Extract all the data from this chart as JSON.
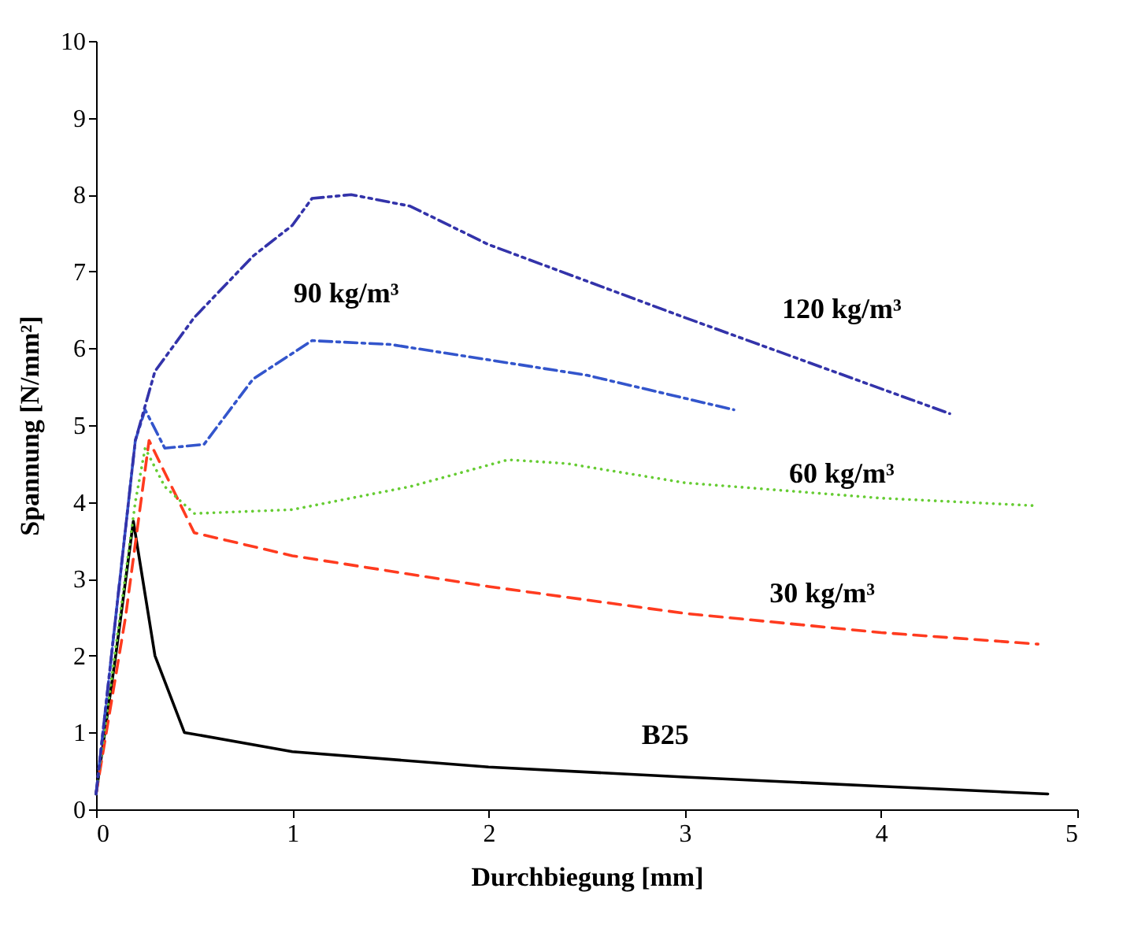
{
  "chart_data": {
    "type": "line",
    "xlabel": "Durchbiegung [mm]",
    "ylabel": "Spannung [N/mm²]",
    "xlim": [
      0,
      5
    ],
    "ylim": [
      0,
      10
    ],
    "xticks": [
      0,
      1,
      2,
      3,
      4,
      5
    ],
    "yticks": [
      0,
      1,
      2,
      3,
      4,
      5,
      6,
      7,
      8,
      9,
      10
    ],
    "grid": false,
    "series": [
      {
        "name": "B25",
        "color": "#000000",
        "line_style": "solid",
        "x": [
          0,
          0.1,
          0.19,
          0.3,
          0.45,
          1,
          2,
          3,
          4,
          4.85
        ],
        "values": [
          0.2,
          2,
          3.75,
          2,
          1.0,
          0.75,
          0.55,
          0.42,
          0.3,
          0.2
        ]
      },
      {
        "name": "30 kg/m³",
        "color": "#ff3b1f",
        "line_style": "dashed",
        "x": [
          0,
          0.15,
          0.27,
          0.5,
          1,
          2,
          3,
          4,
          4.8
        ],
        "values": [
          0.2,
          2.5,
          4.8,
          3.6,
          3.3,
          2.9,
          2.55,
          2.3,
          2.15
        ]
      },
      {
        "name": "60 kg/m³",
        "color": "#66cc33",
        "line_style": "dotted",
        "x": [
          0,
          0.2,
          0.25,
          0.35,
          0.5,
          1,
          1.6,
          2.1,
          2.4,
          3,
          4,
          4.8
        ],
        "values": [
          0.2,
          4,
          4.7,
          4.2,
          3.85,
          3.9,
          4.2,
          4.55,
          4.5,
          4.25,
          4.05,
          3.95
        ]
      },
      {
        "name": "90 kg/m³",
        "color": "#3355cc",
        "line_style": "dashdot",
        "x": [
          0,
          0.2,
          0.25,
          0.35,
          0.55,
          0.8,
          1.1,
          1.5,
          2,
          2.5,
          3.25
        ],
        "values": [
          0.2,
          4.8,
          5.2,
          4.7,
          4.75,
          5.6,
          6.1,
          6.05,
          5.85,
          5.65,
          5.2
        ]
      },
      {
        "name": "120 kg/m³",
        "color": "#3333aa",
        "line_style": "dashdotdot",
        "x": [
          0,
          0.2,
          0.3,
          0.5,
          0.8,
          1,
          1.1,
          1.3,
          1.6,
          2,
          3,
          4.35
        ],
        "values": [
          0.2,
          4.8,
          5.7,
          6.4,
          7.2,
          7.6,
          7.95,
          8.0,
          7.85,
          7.35,
          6.4,
          5.15
        ]
      }
    ]
  }
}
